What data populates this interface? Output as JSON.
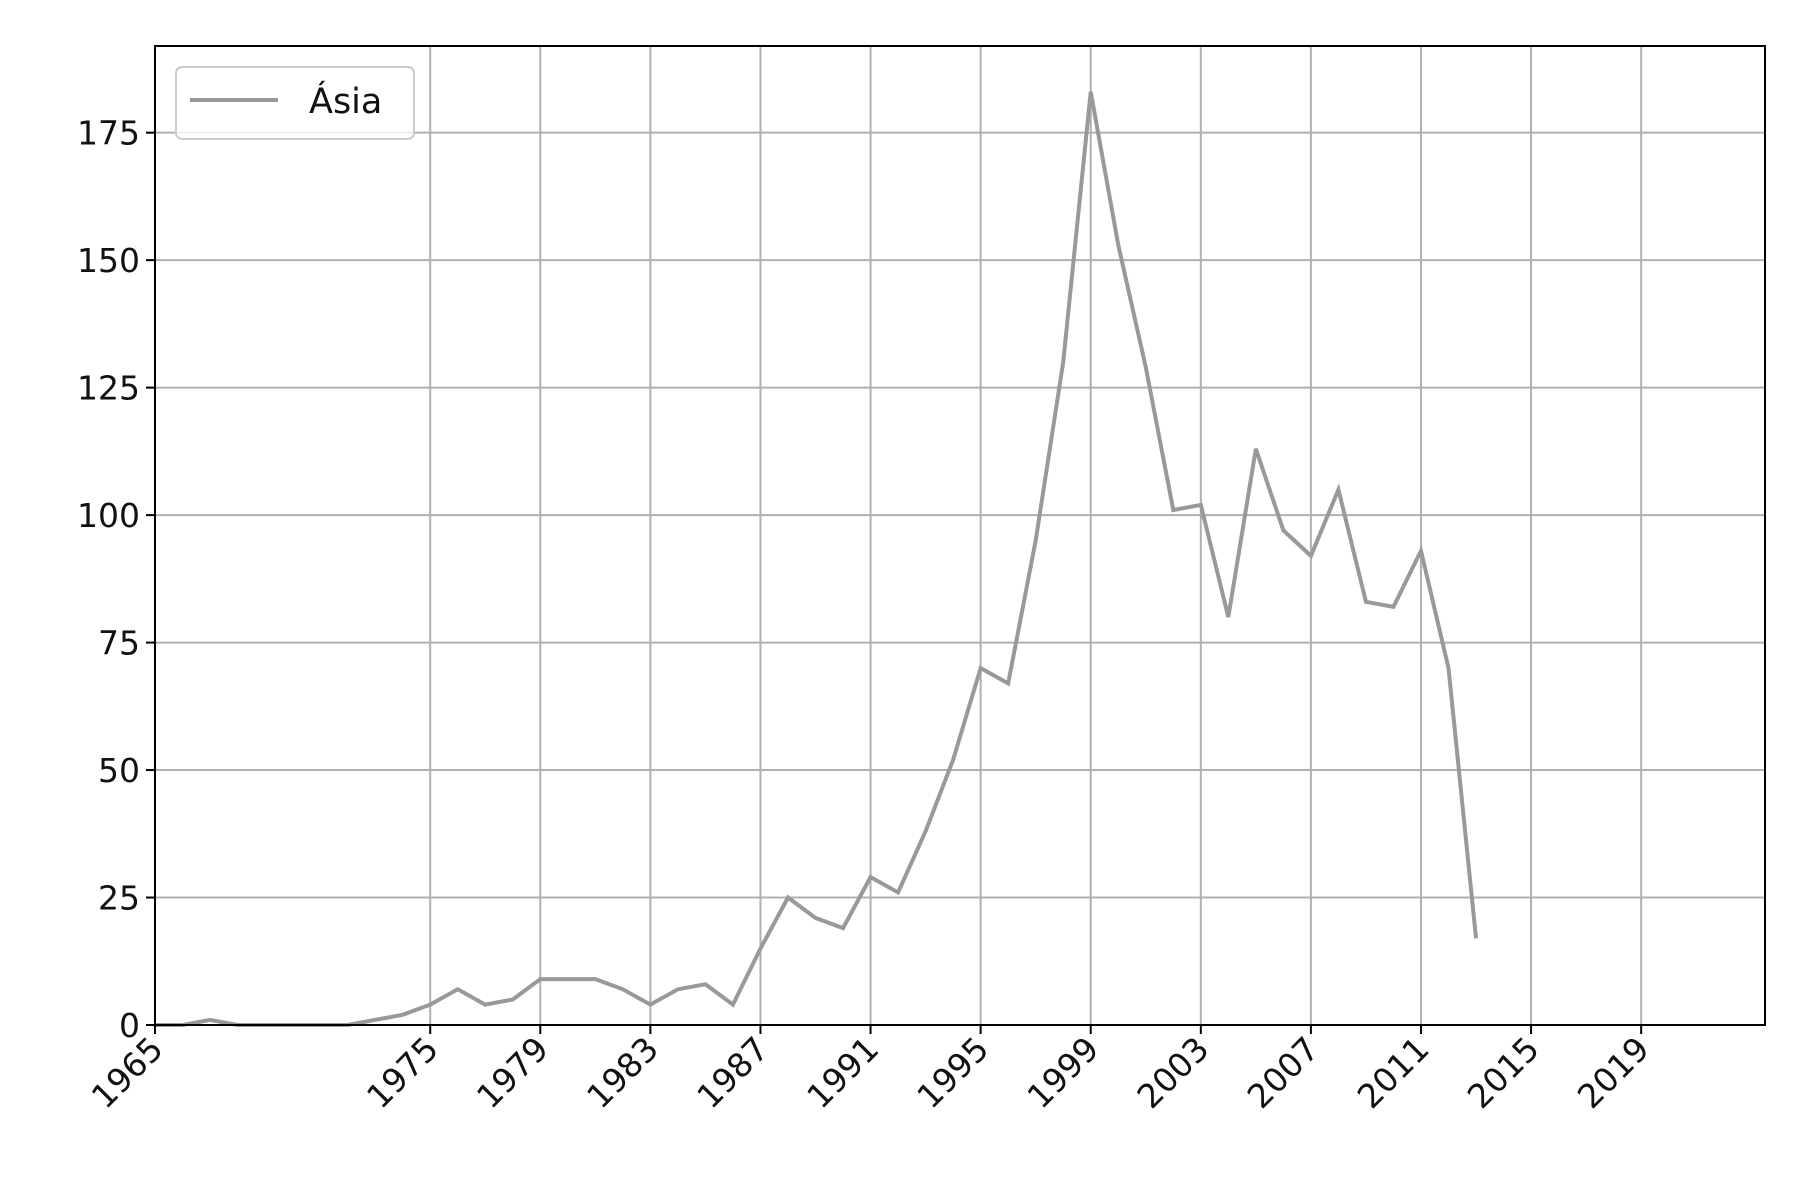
{
  "chart_data": {
    "type": "line",
    "x_tick_labels": [
      "1965",
      "1975",
      "1979",
      "1983",
      "1987",
      "1991",
      "1995",
      "1999",
      "2003",
      "2007",
      "2011",
      "2015",
      "2019"
    ],
    "y_tick_labels": [
      "0",
      "25",
      "50",
      "75",
      "100",
      "125",
      "150",
      "175"
    ],
    "ylim": [
      0,
      192
    ],
    "grid": true,
    "legend_position": "top-left",
    "series": [
      {
        "name": "Ásia",
        "color": "#999999",
        "values": [
          0,
          0,
          1,
          0,
          0,
          0,
          0,
          0,
          1,
          2,
          4,
          7,
          4,
          5,
          9,
          9,
          9,
          7,
          4,
          7,
          8,
          4,
          15,
          25,
          21,
          19,
          29,
          26,
          38,
          52,
          70,
          67,
          95,
          130,
          183,
          153,
          129,
          101,
          102,
          80,
          113,
          97,
          92,
          105,
          83,
          82,
          93,
          70,
          17
        ]
      }
    ]
  }
}
